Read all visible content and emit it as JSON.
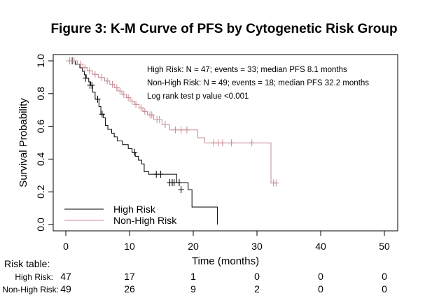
{
  "chart_data": {
    "type": "line",
    "title": "Figure 3: K-M Curve of PFS by Cytogenetic Risk Group",
    "xlabel": "Time (months)",
    "ylabel": "Survival Probability",
    "xlim": [
      0,
      50
    ],
    "ylim": [
      0,
      1
    ],
    "x_ticks": [
      "0",
      "10",
      "20",
      "30",
      "40",
      "50"
    ],
    "y_ticks": [
      "0.0",
      "0.2",
      "0.4",
      "0.6",
      "0.8",
      "1.0"
    ],
    "grid": false,
    "legend_position": "bottom-left",
    "annotations": [
      "High Risk: N = 47; events = 33; median PFS 8.1 months",
      "Non-High Risk: N = 49; events = 18; median PFS 32.2 months",
      "Log rank test p value <0.001"
    ],
    "series": [
      {
        "name": "High Risk",
        "color": "#000000",
        "steps": [
          [
            0,
            1.0
          ],
          [
            1.5,
            0.979
          ],
          [
            2.2,
            0.957
          ],
          [
            2.6,
            0.936
          ],
          [
            2.9,
            0.915
          ],
          [
            3.2,
            0.894
          ],
          [
            3.6,
            0.872
          ],
          [
            3.9,
            0.851
          ],
          [
            4.2,
            0.809
          ],
          [
            4.6,
            0.766
          ],
          [
            5.2,
            0.72
          ],
          [
            5.5,
            0.674
          ],
          [
            5.9,
            0.652
          ],
          [
            6.2,
            0.605
          ],
          [
            6.6,
            0.581
          ],
          [
            7.2,
            0.558
          ],
          [
            7.6,
            0.535
          ],
          [
            8.1,
            0.511
          ],
          [
            8.9,
            0.488
          ],
          [
            9.8,
            0.464
          ],
          [
            10.4,
            0.441
          ],
          [
            10.9,
            0.417
          ],
          [
            11.4,
            0.393
          ],
          [
            11.9,
            0.37
          ],
          [
            12.3,
            0.323
          ],
          [
            13.0,
            0.307
          ],
          [
            17.4,
            0.256
          ],
          [
            19.2,
            0.213
          ],
          [
            19.8,
            0.107
          ],
          [
            23.8,
            0.0
          ]
        ],
        "end": 23.8,
        "censor": [
          [
            1.0,
            1.0
          ],
          [
            3.1,
            0.894
          ],
          [
            3.8,
            0.851
          ],
          [
            4.1,
            0.851
          ],
          [
            5.0,
            0.766
          ],
          [
            5.7,
            0.674
          ],
          [
            10.8,
            0.441
          ],
          [
            14.2,
            0.307
          ],
          [
            14.9,
            0.307
          ],
          [
            16.3,
            0.256
          ],
          [
            16.7,
            0.256
          ],
          [
            17.0,
            0.256
          ],
          [
            17.8,
            0.256
          ],
          [
            18.1,
            0.213
          ]
        ]
      },
      {
        "name": "Non-High Risk",
        "color": "#c88c94",
        "steps": [
          [
            0,
            1.0
          ],
          [
            1.8,
            0.98
          ],
          [
            2.7,
            0.959
          ],
          [
            3.4,
            0.939
          ],
          [
            4.2,
            0.918
          ],
          [
            5.1,
            0.898
          ],
          [
            6.1,
            0.877
          ],
          [
            6.9,
            0.857
          ],
          [
            7.6,
            0.836
          ],
          [
            8.2,
            0.816
          ],
          [
            8.8,
            0.795
          ],
          [
            9.5,
            0.775
          ],
          [
            10.1,
            0.754
          ],
          [
            10.8,
            0.734
          ],
          [
            11.5,
            0.713
          ],
          [
            12.1,
            0.691
          ],
          [
            12.8,
            0.67
          ],
          [
            13.8,
            0.641
          ],
          [
            15.1,
            0.611
          ],
          [
            16.3,
            0.578
          ],
          [
            20.7,
            0.53
          ],
          [
            21.8,
            0.499
          ],
          [
            32.2,
            0.254
          ]
        ],
        "end": 33.2,
        "censor": [
          [
            0.6,
            1.0
          ],
          [
            1.3,
            1.0
          ],
          [
            2.3,
            0.98
          ],
          [
            3.0,
            0.959
          ],
          [
            3.7,
            0.939
          ],
          [
            4.6,
            0.918
          ],
          [
            5.6,
            0.898
          ],
          [
            6.5,
            0.877
          ],
          [
            7.3,
            0.857
          ],
          [
            8.0,
            0.836
          ],
          [
            8.5,
            0.816
          ],
          [
            9.1,
            0.795
          ],
          [
            9.8,
            0.775
          ],
          [
            10.4,
            0.754
          ],
          [
            11.0,
            0.734
          ],
          [
            11.8,
            0.713
          ],
          [
            12.4,
            0.691
          ],
          [
            13.2,
            0.67
          ],
          [
            13.5,
            0.67
          ],
          [
            14.3,
            0.641
          ],
          [
            14.7,
            0.641
          ],
          [
            15.6,
            0.611
          ],
          [
            17.2,
            0.578
          ],
          [
            18.1,
            0.578
          ],
          [
            19.0,
            0.578
          ],
          [
            23.2,
            0.499
          ],
          [
            23.9,
            0.499
          ],
          [
            24.6,
            0.499
          ],
          [
            26.0,
            0.499
          ],
          [
            29.2,
            0.499
          ],
          [
            32.6,
            0.254
          ],
          [
            33.0,
            0.254
          ]
        ]
      }
    ],
    "risk_table": {
      "label": "Risk table:",
      "times": [
        0,
        10,
        20,
        30,
        40,
        50
      ],
      "rows": [
        {
          "label": "High Risk:",
          "values": [
            "47",
            "17",
            "1",
            "0",
            "0",
            "0"
          ]
        },
        {
          "label": "Non-High Risk:",
          "values": [
            "49",
            "26",
            "9",
            "2",
            "0",
            "0"
          ]
        }
      ]
    }
  }
}
